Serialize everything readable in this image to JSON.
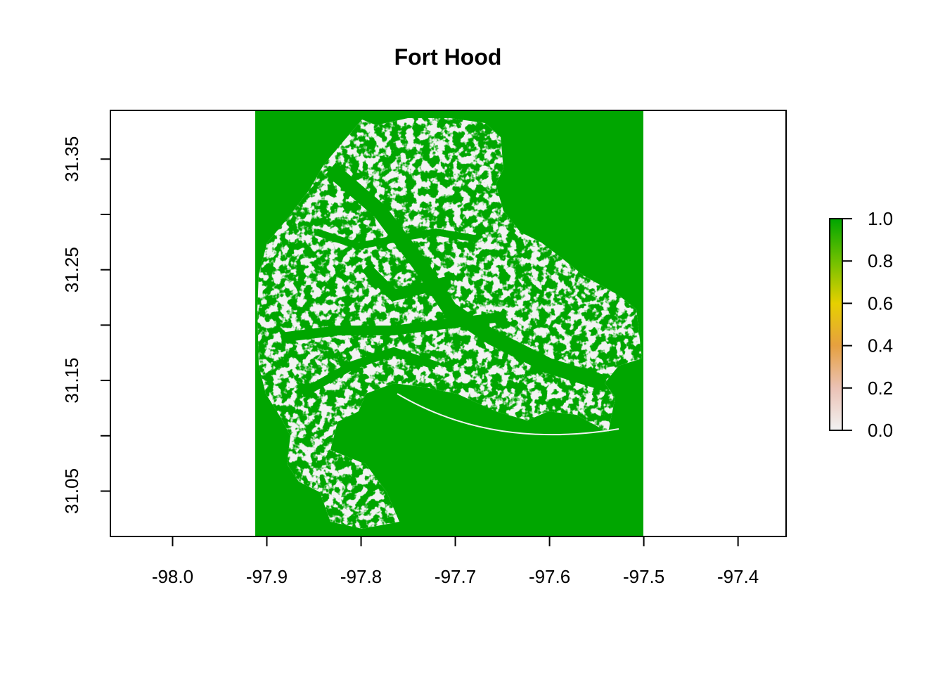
{
  "chart_data": {
    "type": "heatmap",
    "title": "Fort Hood",
    "xlabel": "",
    "ylabel": "",
    "xlim": [
      -98.066,
      -97.349
    ],
    "ylim": [
      31.009,
      31.394
    ],
    "x_ticks": [
      -98.0,
      -97.9,
      -97.8,
      -97.7,
      -97.6,
      -97.5,
      -97.4
    ],
    "x_tick_labels": [
      "-98.0",
      "-97.9",
      "-97.8",
      "-97.7",
      "-97.6",
      "-97.5",
      "-97.4"
    ],
    "y_ticks": [
      31.05,
      31.1,
      31.15,
      31.2,
      31.25,
      31.3,
      31.35
    ],
    "y_tick_labels": [
      "31.05",
      "",
      "31.15",
      "",
      "31.25",
      "",
      "31.35"
    ],
    "raster_extent": {
      "xmin": -97.913,
      "xmax": -97.503,
      "ymin": 31.009,
      "ymax": 31.394
    },
    "raster_values": "binary: 1.0 (green) outside/around installation, 0.0 (light grey) open areas inside Fort Hood",
    "legend": {
      "position": "right",
      "min": 0.0,
      "max": 1.0,
      "tick_labels": [
        "0.0",
        "0.2",
        "0.4",
        "0.6",
        "0.8",
        "1.0"
      ],
      "colors": [
        "#f2f2f2",
        "#ebc2b5",
        "#e6a040",
        "#e6d000",
        "#70c000",
        "#00a600"
      ]
    },
    "colors": {
      "value_1": "#00a600",
      "value_0": "#f2f2f2"
    }
  }
}
